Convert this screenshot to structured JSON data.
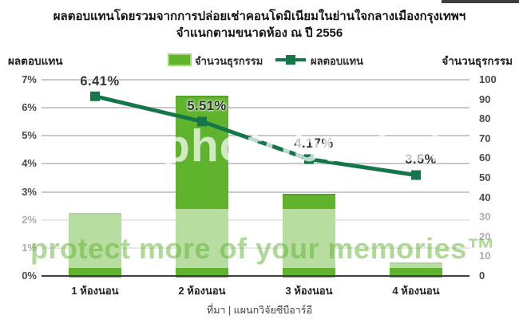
{
  "title": {
    "line1": "ผลตอบแทนโดยรวมจากการปล่อยเช่าคอนโดมิเนียมในย่านใจกลางเมืองกรุงเทพฯ",
    "line2": "จำแนกตามขนาดห้อง ณ ปี 2556"
  },
  "left_axis_title": "ผลตอบแทน",
  "right_axis_title": "จำนวนธุรกรรม",
  "legend": {
    "bar_label": "จำนวนธุรกรรม",
    "line_label": "ผลตอบแทน"
  },
  "source": "ที่มา | แผนกวิจัยซีบีอาร์อี",
  "watermark": {
    "big": "photobucket",
    "small": "protect more of your memories™"
  },
  "colors": {
    "bar_fill": "#5fb32d",
    "bar_fill_washed": "#b7dca0",
    "bar_border": "#a7d77c",
    "line": "#15764a",
    "gridline": "#c9c9c9",
    "axis_line": "#3f3f3f",
    "text": "#262626"
  },
  "chart_data": {
    "type": "bar",
    "subtype": "bar+line combo",
    "title": "ผลตอบแทนโดยรวมจากการปล่อยเช่าคอนโดมิเนียมในย่านใจกลางเมืองกรุงเทพฯ จำแนกตามขนาดห้อง ณ ปี 2556",
    "categories": [
      "1 ห้องนอน",
      "2 ห้องนอน",
      "3 ห้องนอน",
      "4 ห้องนอน"
    ],
    "series": [
      {
        "name": "จำนวนธุรกรรม",
        "type": "bar",
        "axis": "right",
        "values": [
          32,
          92,
          42,
          7
        ]
      },
      {
        "name": "ผลตอบแทน",
        "type": "line",
        "axis": "left",
        "values": [
          6.41,
          5.51,
          4.17,
          3.6
        ],
        "point_labels": [
          "6.41%",
          "5.51%",
          "4.17%",
          "3.6%"
        ]
      }
    ],
    "left_axis": {
      "label": "ผลตอบแทน",
      "min": 0,
      "max": 7,
      "step": 1,
      "tick_labels": [
        "0%",
        "1%",
        "2%",
        "3%",
        "4%",
        "5%",
        "6%",
        "7%"
      ]
    },
    "right_axis": {
      "label": "จำนวนธุรกรรม",
      "min": 0,
      "max": 100,
      "step": 10,
      "tick_labels": [
        "0",
        "10",
        "20",
        "30",
        "40",
        "50",
        "60",
        "70",
        "80",
        "90",
        "100"
      ]
    },
    "grid": true,
    "legend_position": "top-center"
  }
}
